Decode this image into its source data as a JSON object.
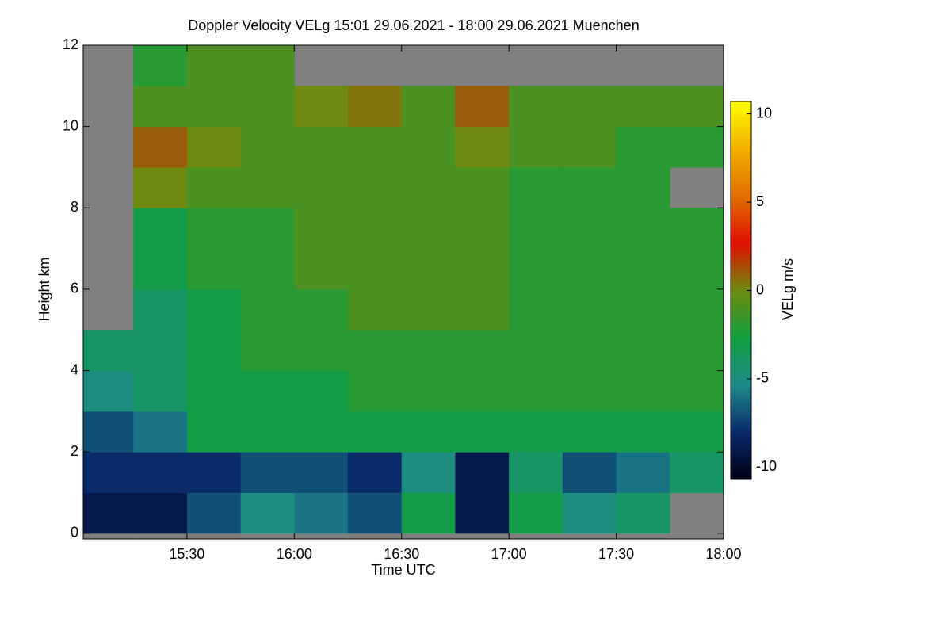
{
  "chart_data": {
    "type": "heatmap",
    "title": "Doppler Velocity VELg   15:01 29.06.2021 - 18:00 29.06.2021 Muenchen",
    "x_label": "Time UTC",
    "y_label": "Height km",
    "colorbar_label": "VELg m/s",
    "x": [
      15.125,
      15.375,
      15.625,
      15.875,
      16.125,
      16.375,
      16.625,
      16.875,
      17.125,
      17.375,
      17.625,
      17.875
    ],
    "y": [
      0.5,
      1.5,
      2.5,
      3.5,
      4.5,
      5.5,
      6.5,
      7.5,
      8.5,
      9.5,
      10.5,
      11.5
    ],
    "values": [
      [
        -9,
        -9,
        -7,
        -5,
        -6,
        -7,
        -3,
        -9,
        -3,
        -5,
        -4,
        null
      ],
      [
        -8,
        -8,
        -8,
        -7,
        -7,
        -8,
        -5,
        -9,
        -4,
        -7,
        -6,
        -4
      ],
      [
        -7,
        -6,
        -3,
        -3,
        -3,
        -3,
        -3,
        -3,
        -3,
        -3,
        -3,
        -3
      ],
      [
        -5,
        -4,
        -3,
        -3,
        -3,
        -2,
        -2,
        -2,
        -2,
        -2,
        -2,
        -2
      ],
      [
        -4,
        -4,
        -3,
        -2,
        -2,
        -2,
        -2,
        -2,
        -2,
        -2,
        -2,
        -2
      ],
      [
        null,
        -4,
        -3,
        -2,
        -2,
        -1,
        -1,
        -1,
        -2,
        -2,
        -2,
        -2
      ],
      [
        null,
        -3,
        -2,
        -2,
        -1,
        -1,
        -1,
        -1,
        -2,
        -2,
        -2,
        -2
      ],
      [
        null,
        -3,
        -2,
        -2,
        -1,
        -1,
        -1,
        -1,
        -2,
        -2,
        -2,
        -2
      ],
      [
        null,
        0,
        -1,
        -1,
        -1,
        -1,
        -1,
        -1,
        -2,
        -2,
        -2,
        null
      ],
      [
        null,
        1,
        0,
        -1,
        -1,
        -1,
        -1,
        0,
        -1,
        -1,
        -2,
        -2
      ],
      [
        null,
        -1,
        -1,
        -1,
        0,
        0.5,
        -1,
        1,
        -1,
        -1,
        -1,
        -1
      ],
      [
        null,
        -2,
        -1,
        -1,
        null,
        null,
        null,
        null,
        null,
        null,
        null,
        null
      ]
    ],
    "xlim": [
      15.0167,
      18.0
    ],
    "xticks": [
      {
        "value": 15.5,
        "label": "15:30"
      },
      {
        "value": 16.0,
        "label": "16:00"
      },
      {
        "value": 16.5,
        "label": "16:30"
      },
      {
        "value": 17.0,
        "label": "17:00"
      },
      {
        "value": 17.5,
        "label": "17:30"
      },
      {
        "value": 18.0,
        "label": "18:00"
      }
    ],
    "ylim": [
      -0.14,
      12
    ],
    "yticks": [
      0,
      2,
      4,
      6,
      8,
      10,
      12
    ],
    "clim": [
      -10.7,
      10.7
    ],
    "cticks": [
      10,
      5,
      0,
      -5,
      -10
    ],
    "colormap": [
      "#000014",
      "#0a2a6a",
      "#1f8a8a",
      "#12a040",
      "#6e8a10",
      "#e01000",
      "#e07000",
      "#f0b000",
      "#ffff00"
    ],
    "missing_color": "#808080"
  }
}
